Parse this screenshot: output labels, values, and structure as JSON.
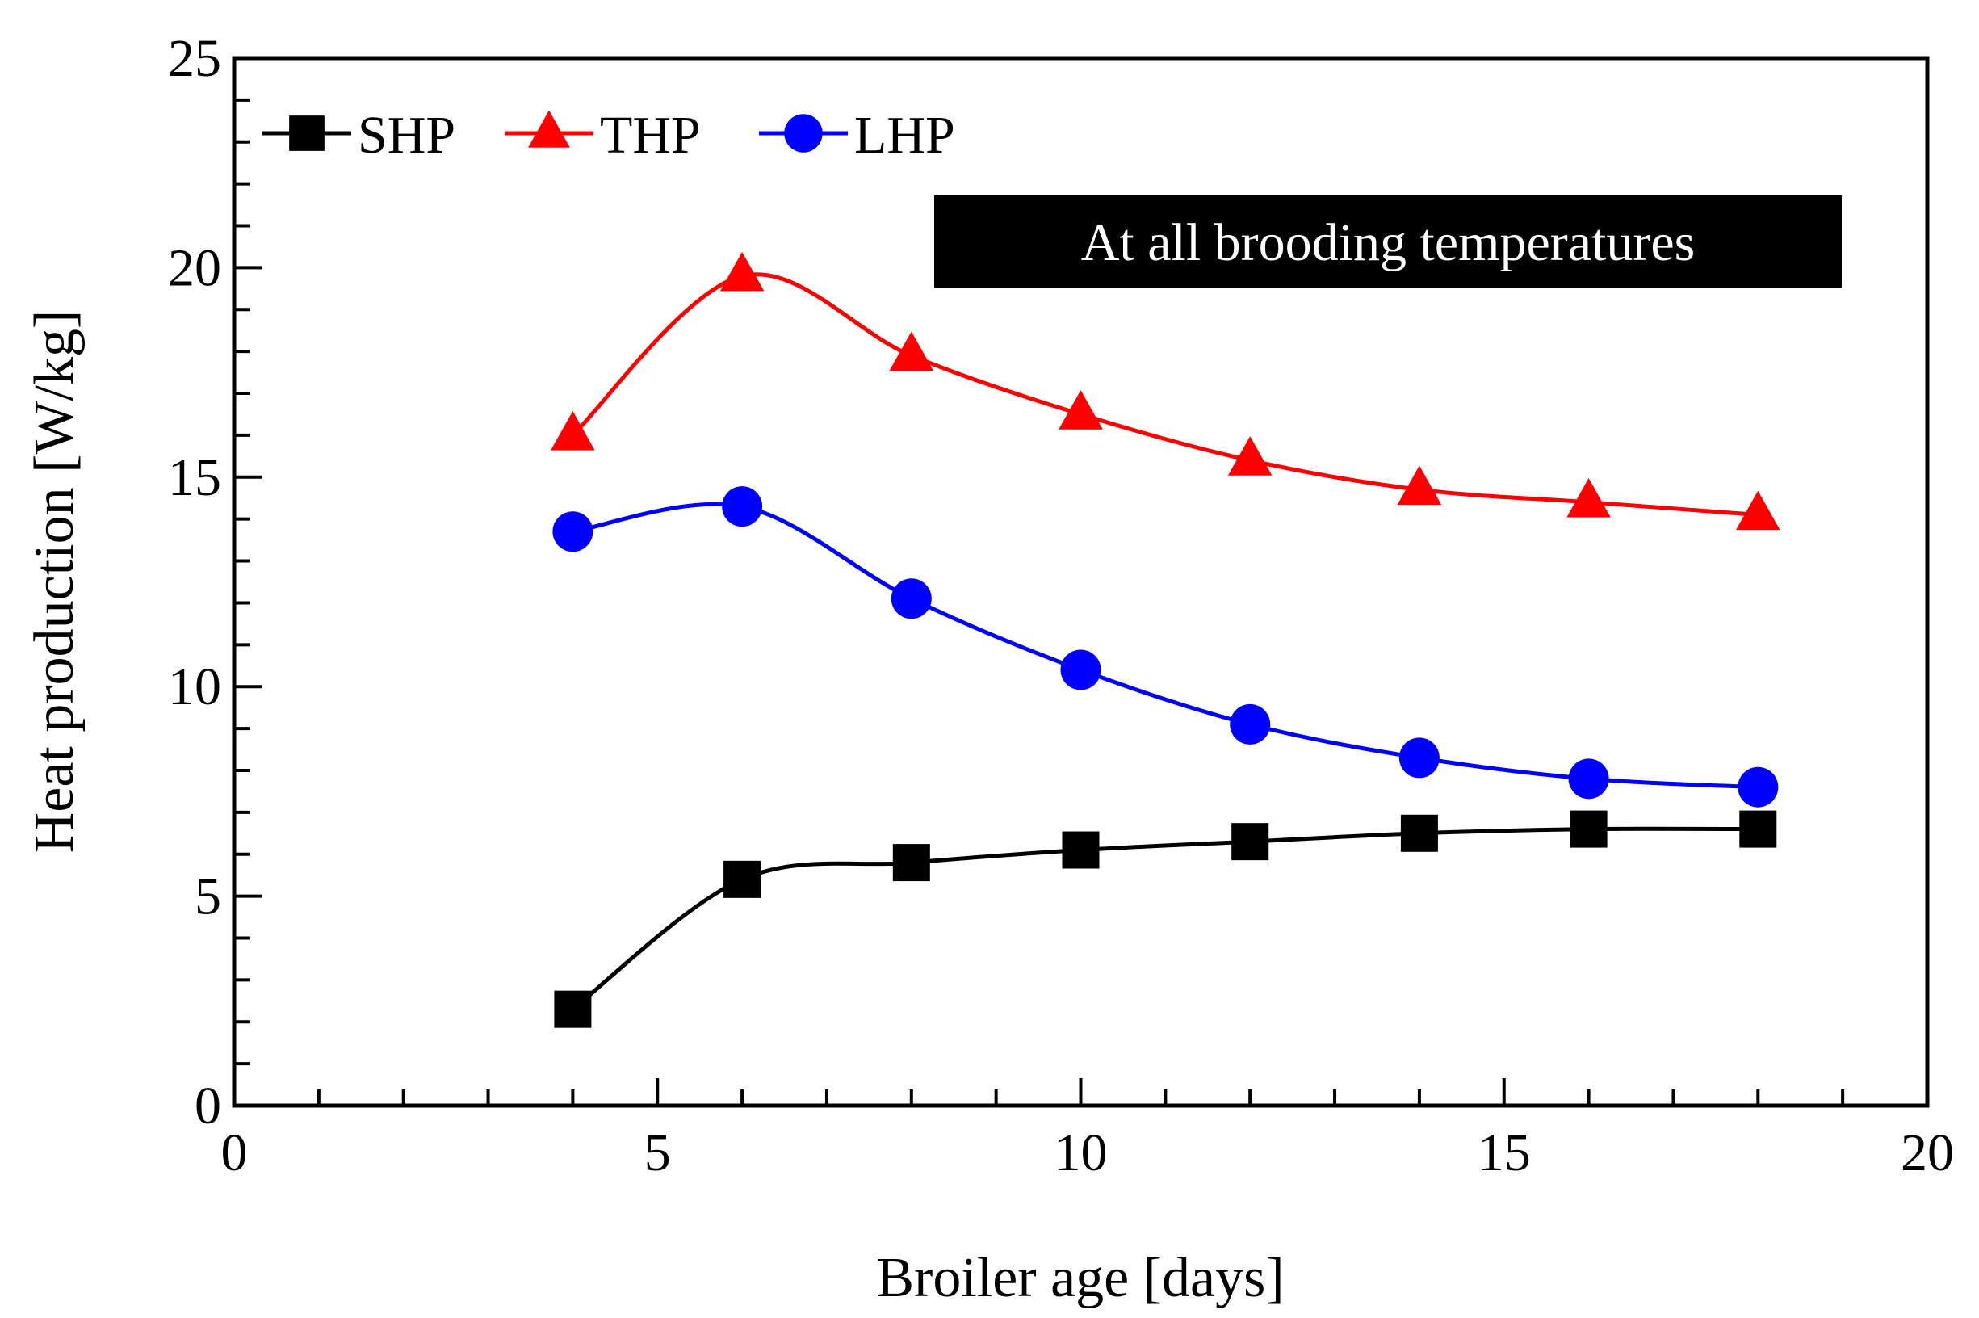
{
  "chart_data": {
    "type": "line",
    "title": "",
    "xlabel": "Broiler age [days]",
    "ylabel": "Heat production [W/kg]",
    "xlim": [
      0,
      20
    ],
    "ylim": [
      0,
      25
    ],
    "xticks": [
      "0",
      "5",
      "10",
      "15",
      "20"
    ],
    "yticks": [
      "0",
      "5",
      "10",
      "15",
      "20",
      "25"
    ],
    "grid": false,
    "legend_position": "top-left",
    "annotation": "At all brooding temperatures",
    "x": [
      4,
      6,
      8,
      10,
      12,
      14,
      16,
      18
    ],
    "series": [
      {
        "name": "SHP",
        "color": "#000000",
        "marker": "square",
        "values": [
          2.3,
          5.4,
          5.8,
          6.1,
          6.3,
          6.5,
          6.6,
          6.6
        ]
      },
      {
        "name": "THP",
        "color": "#ff0000",
        "marker": "triangle",
        "values": [
          16.0,
          19.8,
          17.9,
          16.5,
          15.4,
          14.7,
          14.4,
          14.1
        ]
      },
      {
        "name": "LHP",
        "color": "#0000ff",
        "marker": "circle",
        "values": [
          13.7,
          14.3,
          12.1,
          10.4,
          9.1,
          8.3,
          7.8,
          7.6
        ]
      }
    ]
  }
}
